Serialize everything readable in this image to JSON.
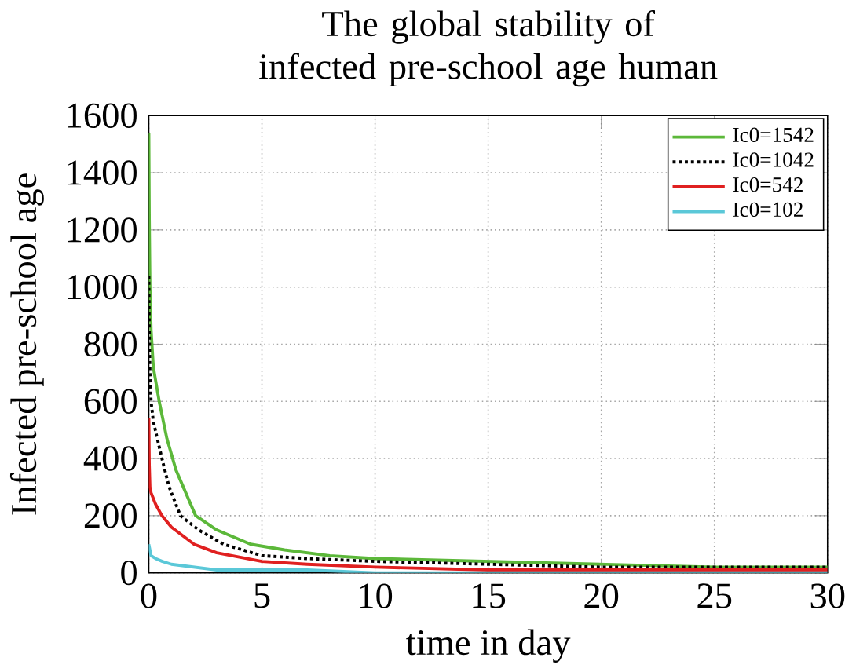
{
  "chart_data": {
    "type": "line",
    "title": "The global stability of infected pre-school age human",
    "xlabel": "time in day",
    "ylabel": "Infected pre-school age",
    "xlim": [
      0,
      30
    ],
    "ylim": [
      0,
      1600
    ],
    "xticks": [
      0,
      5,
      10,
      15,
      20,
      25,
      30
    ],
    "yticks": [
      0,
      200,
      400,
      600,
      800,
      1000,
      1200,
      1400,
      1600
    ],
    "grid": true,
    "legend": "top right",
    "series": [
      {
        "name": "Ic0=1542",
        "color": "#5cb83a",
        "line_style": "solid",
        "x": [
          0,
          0.02,
          0.05,
          0.1,
          0.2,
          0.46,
          0.8,
          1.2,
          2.07,
          3,
          4.5,
          6,
          8,
          10,
          15,
          20,
          25,
          30
        ],
        "values": [
          1540,
          1250,
          1000,
          850,
          720,
          600,
          470,
          360,
          200,
          150,
          100,
          80,
          60,
          50,
          40,
          30,
          20,
          20
        ]
      },
      {
        "name": "Ic0=1042",
        "color": "#000000",
        "line_style": "dotted",
        "x": [
          0,
          0.02,
          0.05,
          0.1,
          0.2,
          0.58,
          0.9,
          1.4,
          2.2,
          3.3,
          5,
          7,
          10,
          15,
          20,
          25,
          30
        ],
        "values": [
          1040,
          850,
          700,
          600,
          530,
          400,
          300,
          200,
          150,
          100,
          60,
          50,
          40,
          30,
          20,
          20,
          20
        ]
      },
      {
        "name": "Ic0=542",
        "color": "#e02020",
        "line_style": "solid",
        "x": [
          0,
          0.02,
          0.05,
          0.1,
          0.3,
          0.58,
          1,
          2,
          3,
          5,
          7,
          10,
          15,
          20,
          25,
          30
        ],
        "values": [
          540,
          380,
          300,
          280,
          240,
          200,
          160,
          100,
          70,
          40,
          30,
          20,
          10,
          10,
          10,
          10
        ]
      },
      {
        "name": "Ic0=102",
        "color": "#5bc8d8",
        "line_style": "solid",
        "x": [
          0,
          0.05,
          0.1,
          0.3,
          0.6,
          1,
          2,
          3,
          5,
          7,
          10,
          15,
          20,
          30
        ],
        "values": [
          100,
          80,
          60,
          50,
          40,
          30,
          20,
          10,
          10,
          10,
          0,
          0,
          0,
          0
        ]
      }
    ]
  }
}
